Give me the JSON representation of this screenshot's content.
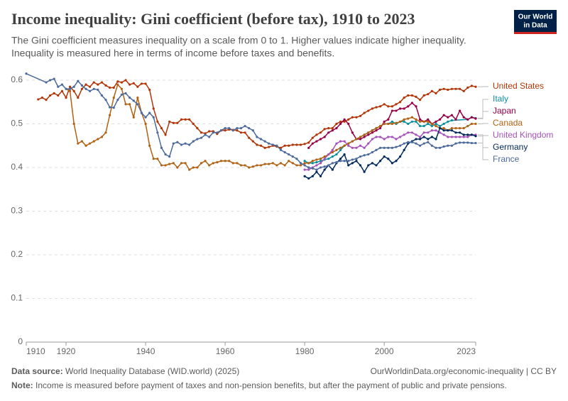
{
  "chart_data": {
    "type": "line",
    "title": "Income inequality: Gini coefficient (before tax), 1910 to 2023",
    "subtitle": [
      "The Gini coefficient measures inequality on a scale from 0 to 1. Higher values indicate higher inequality.",
      "Inequality is measured here in terms of income before taxes and benefits."
    ],
    "logo": [
      "Our World",
      "in Data"
    ],
    "source_label": "Data source:",
    "source": "World Inequality Database (WID.world) (2025)",
    "url": "OurWorldinData.org/economic-inequality | CC BY",
    "note_label": "Note:",
    "note": "Income is measured before payment of taxes and non-pension benefits, but after the payment of public and private pensions.",
    "xlim": [
      1910,
      2023
    ],
    "xticks": [
      1910,
      1920,
      1940,
      1960,
      1980,
      2000,
      2023
    ],
    "ylim": [
      0,
      0.6
    ],
    "yticks": [
      0,
      0.1,
      0.2,
      0.3,
      0.4,
      0.5,
      0.6
    ],
    "grid": true,
    "series": [
      {
        "name": "United States",
        "color": "#b13507",
        "x": [
          1913,
          1914,
          1915,
          1916,
          1917,
          1918,
          1919,
          1920,
          1921,
          1922,
          1923,
          1924,
          1925,
          1926,
          1927,
          1928,
          1929,
          1930,
          1931,
          1932,
          1933,
          1934,
          1935,
          1936,
          1937,
          1938,
          1939,
          1940,
          1941,
          1942,
          1943,
          1944,
          1945,
          1946,
          1947,
          1948,
          1949,
          1950,
          1951,
          1952,
          1953,
          1954,
          1955,
          1956,
          1957,
          1958,
          1959,
          1960,
          1961,
          1962,
          1963,
          1964,
          1965,
          1966,
          1967,
          1968,
          1969,
          1970,
          1971,
          1972,
          1973,
          1974,
          1975,
          1976,
          1977,
          1978,
          1979,
          1980,
          1981,
          1982,
          1983,
          1984,
          1985,
          1986,
          1987,
          1988,
          1989,
          1990,
          1991,
          1992,
          1993,
          1994,
          1995,
          1996,
          1997,
          1998,
          1999,
          2000,
          2001,
          2002,
          2003,
          2004,
          2005,
          2006,
          2007,
          2008,
          2009,
          2010,
          2011,
          2012,
          2013,
          2014,
          2015,
          2016,
          2017,
          2018,
          2019,
          2020,
          2021,
          2022,
          2023
        ],
        "values": [
          0.556,
          0.56,
          0.555,
          0.565,
          0.57,
          0.565,
          0.575,
          0.56,
          0.585,
          0.575,
          0.56,
          0.58,
          0.59,
          0.585,
          0.595,
          0.59,
          0.595,
          0.588,
          0.583,
          0.583,
          0.597,
          0.595,
          0.6,
          0.59,
          0.593,
          0.585,
          0.592,
          0.592,
          0.578,
          0.535,
          0.505,
          0.49,
          0.475,
          0.505,
          0.502,
          0.502,
          0.51,
          0.51,
          0.51,
          0.5,
          0.49,
          0.48,
          0.478,
          0.483,
          0.483,
          0.477,
          0.485,
          0.485,
          0.487,
          0.486,
          0.485,
          0.48,
          0.48,
          0.468,
          0.46,
          0.452,
          0.45,
          0.445,
          0.447,
          0.45,
          0.448,
          0.445,
          0.45,
          0.45,
          0.452,
          0.452,
          0.452,
          0.454,
          0.457,
          0.468,
          0.475,
          0.48,
          0.488,
          0.49,
          0.49,
          0.5,
          0.505,
          0.505,
          0.51,
          0.515,
          0.515,
          0.518,
          0.525,
          0.53,
          0.535,
          0.538,
          0.54,
          0.545,
          0.54,
          0.54,
          0.545,
          0.55,
          0.56,
          0.565,
          0.565,
          0.562,
          0.555,
          0.565,
          0.568,
          0.575,
          0.57,
          0.578,
          0.58,
          0.578,
          0.58,
          0.58,
          0.58,
          0.575,
          0.583,
          0.587,
          0.585
        ]
      },
      {
        "name": "Italy",
        "color": "#0c8f9c",
        "x": [
          1980,
          1981,
          1982,
          1983,
          1984,
          1985,
          1986,
          1987,
          1988,
          1989,
          1990,
          1991,
          1992,
          1993,
          1994,
          1995,
          1996,
          1997,
          1998,
          1999,
          2000,
          2001,
          2002,
          2003,
          2004,
          2005,
          2006,
          2007,
          2008,
          2009,
          2010,
          2011,
          2012,
          2013,
          2014,
          2015,
          2016,
          2017,
          2021,
          2022,
          2023
        ],
        "values": [
          0.415,
          0.41,
          0.41,
          0.412,
          0.415,
          0.418,
          0.42,
          0.425,
          0.43,
          0.44,
          0.45,
          0.455,
          0.46,
          0.465,
          0.47,
          0.475,
          0.48,
          0.485,
          0.49,
          0.495,
          0.5,
          0.5,
          0.505,
          0.5,
          0.505,
          0.505,
          0.5,
          0.505,
          0.505,
          0.495,
          0.495,
          0.5,
          0.495,
          0.5,
          0.495,
          0.5,
          0.505,
          0.508,
          0.51,
          0.515,
          0.513
        ]
      },
      {
        "name": "Japan",
        "color": "#970046",
        "x": [
          1981,
          1982,
          1983,
          1984,
          1985,
          1986,
          1987,
          1988,
          1989,
          1990,
          1991,
          1992,
          1993,
          1994,
          1995,
          1996,
          1997,
          1998,
          1999,
          2000,
          2001,
          2002,
          2003,
          2004,
          2005,
          2006,
          2007,
          2008,
          2009,
          2010,
          2011,
          2012,
          2013,
          2014,
          2015,
          2016,
          2017,
          2018,
          2019,
          2020,
          2021,
          2022,
          2023
        ],
        "values": [
          0.445,
          0.455,
          0.46,
          0.465,
          0.47,
          0.48,
          0.485,
          0.49,
          0.5,
          0.51,
          0.5,
          0.48,
          0.465,
          0.465,
          0.47,
          0.475,
          0.48,
          0.485,
          0.49,
          0.505,
          0.51,
          0.53,
          0.53,
          0.535,
          0.535,
          0.54,
          0.548,
          0.54,
          0.51,
          0.505,
          0.51,
          0.5,
          0.505,
          0.51,
          0.52,
          0.515,
          0.52,
          0.51,
          0.53,
          0.515,
          0.51,
          0.515,
          0.512
        ]
      },
      {
        "name": "Canada",
        "color": "#b16214",
        "x": [
          1920,
          1921,
          1922,
          1923,
          1924,
          1925,
          1926,
          1927,
          1928,
          1929,
          1930,
          1931,
          1932,
          1933,
          1934,
          1935,
          1936,
          1937,
          1938,
          1939,
          1940,
          1941,
          1942,
          1943,
          1944,
          1945,
          1946,
          1947,
          1948,
          1949,
          1950,
          1951,
          1952,
          1953,
          1954,
          1955,
          1956,
          1957,
          1958,
          1959,
          1960,
          1961,
          1962,
          1963,
          1964,
          1965,
          1966,
          1967,
          1968,
          1969,
          1970,
          1971,
          1972,
          1973,
          1974,
          1975,
          1976,
          1977,
          1978,
          1979,
          1980,
          1981,
          1982,
          1983,
          1984,
          1985,
          1986,
          1987,
          1988,
          1989,
          1990,
          1991,
          1992,
          1993,
          1994,
          1995,
          1996,
          1997,
          1998,
          1999,
          2000,
          2001,
          2002,
          2003,
          2004,
          2005,
          2006,
          2007,
          2008,
          2009,
          2010,
          2011,
          2012,
          2013,
          2014,
          2015,
          2016,
          2017,
          2018,
          2019,
          2020,
          2021,
          2022,
          2023
        ],
        "values": [
          0.58,
          0.575,
          0.5,
          0.455,
          0.46,
          0.45,
          0.455,
          0.46,
          0.465,
          0.47,
          0.48,
          0.52,
          0.56,
          0.59,
          0.58,
          0.545,
          0.545,
          0.515,
          0.56,
          0.525,
          0.5,
          0.45,
          0.42,
          0.42,
          0.405,
          0.405,
          0.408,
          0.41,
          0.4,
          0.41,
          0.41,
          0.395,
          0.4,
          0.4,
          0.41,
          0.415,
          0.405,
          0.41,
          0.412,
          0.415,
          0.415,
          0.415,
          0.41,
          0.41,
          0.405,
          0.405,
          0.4,
          0.402,
          0.405,
          0.405,
          0.408,
          0.408,
          0.41,
          0.405,
          0.41,
          0.405,
          0.415,
          0.41,
          0.405,
          0.405,
          0.41,
          0.41,
          0.415,
          0.418,
          0.42,
          0.425,
          0.43,
          0.435,
          0.44,
          0.445,
          0.45,
          0.455,
          0.46,
          0.465,
          0.47,
          0.475,
          0.48,
          0.485,
          0.49,
          0.495,
          0.5,
          0.5,
          0.5,
          0.502,
          0.505,
          0.51,
          0.512,
          0.515,
          0.51,
          0.505,
          0.505,
          0.505,
          0.5,
          0.495,
          0.49,
          0.49,
          0.485,
          0.49,
          0.49,
          0.49,
          0.49,
          0.495,
          0.5,
          0.5
        ]
      },
      {
        "name": "United Kingdom",
        "color": "#a652ba",
        "x": [
          1980,
          1981,
          1982,
          1983,
          1984,
          1985,
          1986,
          1987,
          1988,
          1989,
          1990,
          1991,
          1992,
          1993,
          1994,
          1995,
          1996,
          1997,
          1998,
          1999,
          2000,
          2001,
          2002,
          2003,
          2004,
          2005,
          2006,
          2007,
          2008,
          2009,
          2010,
          2011,
          2012,
          2013,
          2014,
          2015,
          2016,
          2017,
          2018,
          2019,
          2020,
          2021,
          2022,
          2023
        ],
        "values": [
          0.395,
          0.395,
          0.4,
          0.405,
          0.41,
          0.42,
          0.43,
          0.44,
          0.455,
          0.46,
          0.46,
          0.45,
          0.445,
          0.445,
          0.45,
          0.445,
          0.455,
          0.465,
          0.47,
          0.47,
          0.465,
          0.47,
          0.47,
          0.465,
          0.47,
          0.475,
          0.48,
          0.48,
          0.475,
          0.47,
          0.48,
          0.48,
          0.485,
          0.485,
          0.48,
          0.475,
          0.47,
          0.47,
          0.47,
          0.47,
          0.47,
          0.47,
          0.475,
          0.475
        ]
      },
      {
        "name": "Germany",
        "color": "#00295b",
        "x": [
          1980,
          1981,
          1982,
          1983,
          1984,
          1985,
          1986,
          1987,
          1988,
          1989,
          1990,
          1991,
          1992,
          1993,
          1994,
          1995,
          1996,
          1997,
          1998,
          1999,
          2000,
          2001,
          2002,
          2003,
          2004,
          2005,
          2006,
          2007,
          2008,
          2009,
          2010,
          2011,
          2012,
          2013,
          2014,
          2015,
          2016,
          2017,
          2018,
          2019,
          2020,
          2021,
          2022,
          2023
        ],
        "values": [
          0.38,
          0.375,
          0.38,
          0.39,
          0.38,
          0.395,
          0.405,
          0.395,
          0.41,
          0.42,
          0.43,
          0.405,
          0.41,
          0.415,
          0.405,
          0.39,
          0.405,
          0.41,
          0.405,
          0.415,
          0.425,
          0.42,
          0.41,
          0.415,
          0.425,
          0.44,
          0.455,
          0.46,
          0.465,
          0.465,
          0.47,
          0.465,
          0.47,
          0.465,
          0.49,
          0.485,
          0.485,
          0.485,
          0.48,
          0.48,
          0.475,
          0.475,
          0.475,
          0.472
        ]
      },
      {
        "name": "France",
        "color": "#4c6a9c",
        "x": [
          1910,
          1915,
          1916,
          1917,
          1918,
          1919,
          1920,
          1921,
          1922,
          1923,
          1924,
          1925,
          1926,
          1927,
          1928,
          1929,
          1930,
          1931,
          1932,
          1933,
          1934,
          1935,
          1936,
          1937,
          1938,
          1939,
          1940,
          1941,
          1942,
          1943,
          1944,
          1945,
          1946,
          1947,
          1948,
          1949,
          1950,
          1951,
          1952,
          1953,
          1954,
          1955,
          1956,
          1957,
          1958,
          1959,
          1960,
          1961,
          1962,
          1963,
          1964,
          1965,
          1966,
          1967,
          1968,
          1969,
          1970,
          1971,
          1972,
          1973,
          1974,
          1975,
          1976,
          1977,
          1978,
          1979,
          1980,
          1981,
          1982,
          1983,
          1984,
          1985,
          1986,
          1987,
          1988,
          1989,
          1990,
          1991,
          1992,
          1993,
          1994,
          1995,
          1996,
          1997,
          1998,
          1999,
          2000,
          2001,
          2002,
          2003,
          2004,
          2005,
          2006,
          2007,
          2008,
          2009,
          2010,
          2011,
          2012,
          2013,
          2014,
          2015,
          2016,
          2017,
          2018,
          2019,
          2020,
          2021,
          2022,
          2023
        ],
        "values": [
          0.615,
          0.595,
          0.6,
          0.603,
          0.585,
          0.59,
          0.58,
          0.58,
          0.585,
          0.598,
          0.588,
          0.58,
          0.575,
          0.58,
          0.578,
          0.565,
          0.555,
          0.538,
          0.537,
          0.555,
          0.567,
          0.57,
          0.56,
          0.553,
          0.545,
          0.525,
          0.515,
          0.525,
          0.515,
          0.48,
          0.445,
          0.43,
          0.425,
          0.455,
          0.458,
          0.452,
          0.455,
          0.452,
          0.46,
          0.465,
          0.468,
          0.475,
          0.47,
          0.48,
          0.48,
          0.485,
          0.49,
          0.49,
          0.485,
          0.49,
          0.49,
          0.495,
          0.49,
          0.485,
          0.47,
          0.465,
          0.46,
          0.455,
          0.452,
          0.45,
          0.44,
          0.435,
          0.43,
          0.425,
          0.42,
          0.41,
          0.405,
          0.4,
          0.398,
          0.395,
          0.4,
          0.402,
          0.405,
          0.41,
          0.412,
          0.415,
          0.415,
          0.415,
          0.418,
          0.42,
          0.425,
          0.428,
          0.43,
          0.435,
          0.44,
          0.445,
          0.445,
          0.445,
          0.445,
          0.447,
          0.45,
          0.455,
          0.458,
          0.458,
          0.455,
          0.45,
          0.455,
          0.458,
          0.45,
          0.445,
          0.445,
          0.448,
          0.45,
          0.45,
          0.455,
          0.457,
          0.457,
          0.457,
          0.456,
          0.456
        ]
      }
    ]
  }
}
